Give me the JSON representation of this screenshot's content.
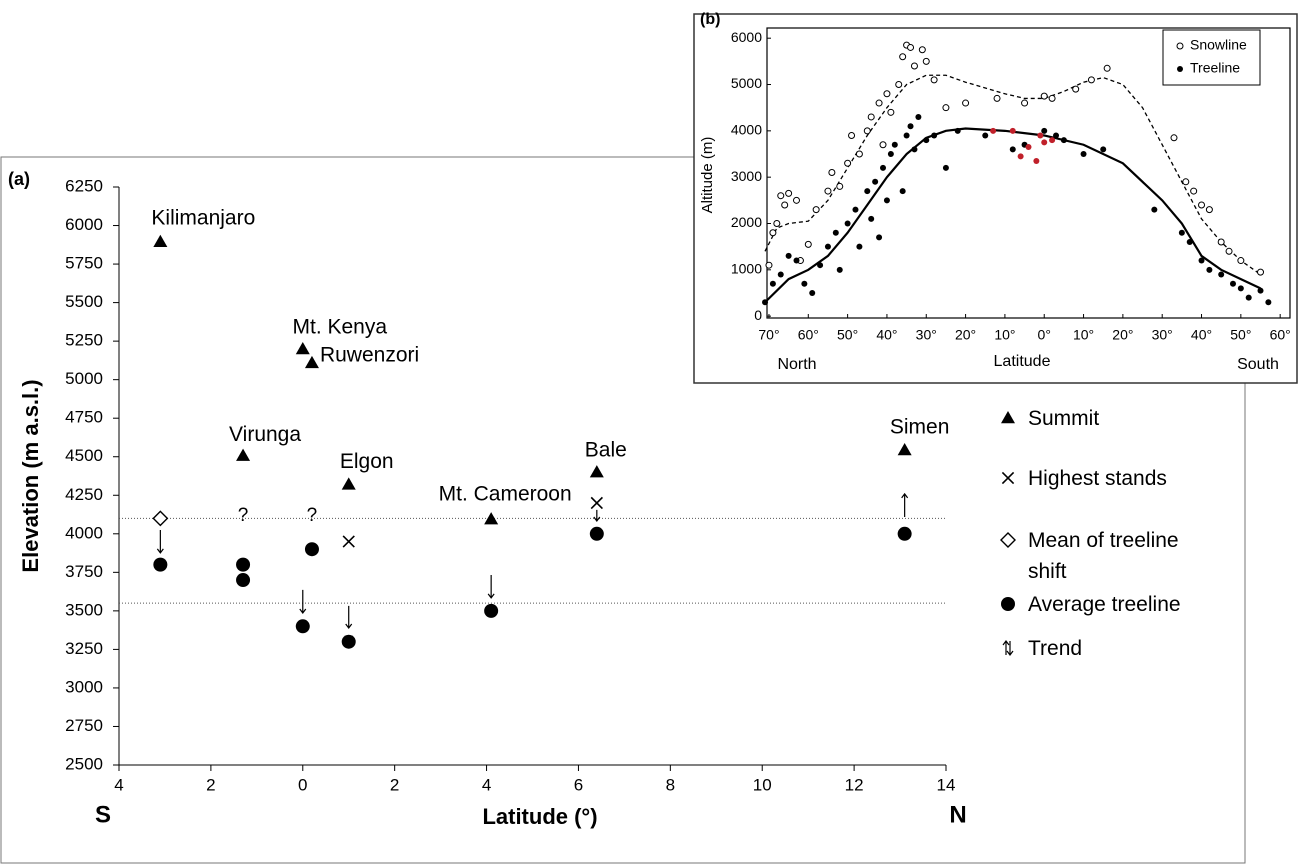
{
  "chart_data": [
    {
      "type": "scatter",
      "title": "(a)",
      "ylabel": "Elevation (m a.s.l.)",
      "xlabel": "Latitude (°)",
      "x_side_labels": [
        "S",
        "N"
      ],
      "xlim": [
        -4,
        14
      ],
      "ylim": [
        2500,
        6250
      ],
      "xticks": [
        {
          "value": -4,
          "label": "4"
        },
        {
          "value": -2,
          "label": "2"
        },
        0,
        2,
        4,
        6,
        8,
        10,
        12,
        14
      ],
      "yticks": [
        2500,
        2750,
        3000,
        3250,
        3500,
        3750,
        4000,
        4250,
        4500,
        4750,
        5000,
        5250,
        5500,
        5750,
        6000,
        6250
      ],
      "hlines": [
        4100,
        3550
      ],
      "legend": "right",
      "series": [
        {
          "name": "Summit",
          "marker": "triangle",
          "color": "#000000",
          "x": [
            -3.1,
            0,
            0.2,
            -1.3,
            1.0,
            4.1,
            6.4,
            13.1
          ],
          "values": [
            5895,
            5199,
            5109,
            4507,
            4321,
            4095,
            4400,
            4544
          ],
          "labels": [
            "Kilimanjaro",
            "Mt. Kenya",
            "Ruwenzori",
            "Virunga",
            "Elgon",
            "Mt. Cameroon",
            "Bale",
            "Simen"
          ]
        },
        {
          "name": "Highest stands",
          "marker": "cross",
          "color": "#000000",
          "x": [
            1.0,
            6.4
          ],
          "values": [
            3950,
            4200
          ]
        },
        {
          "name": "Mean of treeline shift",
          "marker": "diamond",
          "color": "#000000",
          "x": [
            -3.1
          ],
          "values": [
            4100
          ]
        },
        {
          "name": "Average treeline",
          "marker": "circle",
          "color": "#000000",
          "x": [
            -3.1,
            -1.3,
            -1.3,
            0,
            0.2,
            1.0,
            4.1,
            6.4,
            13.1
          ],
          "values": [
            3800,
            3800,
            3700,
            3400,
            3900,
            3300,
            3500,
            4000,
            4000
          ]
        },
        {
          "name": "Trend",
          "marker": "arrow",
          "color": "#000000",
          "x": [
            -3.1,
            0,
            1.0,
            4.1,
            6.4,
            13.1
          ],
          "values": [
            4025,
            3636,
            3532,
            3733,
            4155,
            4109
          ],
          "to": [
            3876,
            3486,
            3389,
            3584,
            4083,
            4259
          ]
        }
      ],
      "annotations": [
        {
          "text": "?",
          "x": -1.3,
          "y": 4115
        },
        {
          "text": "?",
          "x": 0.2,
          "y": 4115
        }
      ]
    },
    {
      "type": "scatter",
      "title": "(b)",
      "ylabel": "Altitude (m)",
      "xlabel": "Latitude",
      "x_side_labels": [
        "North",
        "South"
      ],
      "xlim": [
        -70.5,
        62.5
      ],
      "ylim": [
        -40,
        6220
      ],
      "xticks": [
        {
          "value": -70,
          "label": "70°"
        },
        {
          "value": -60,
          "label": "60°"
        },
        {
          "value": -50,
          "label": "50°"
        },
        {
          "value": -40,
          "label": "40°"
        },
        {
          "value": -30,
          "label": "30°"
        },
        {
          "value": -20,
          "label": "20°"
        },
        {
          "value": -10,
          "label": "10°"
        },
        {
          "value": 0,
          "label": "0°"
        },
        {
          "value": 10,
          "label": "10°"
        },
        {
          "value": 20,
          "label": "20°"
        },
        {
          "value": 30,
          "label": "30°"
        },
        {
          "value": 40,
          "label": "40°"
        },
        {
          "value": 50,
          "label": "50°"
        },
        {
          "value": 60,
          "label": "60°"
        }
      ],
      "yticks": [
        0,
        1000,
        2000,
        3000,
        4000,
        5000,
        6000
      ],
      "legend": "upper right",
      "series": [
        {
          "name": "Snowline",
          "marker": "open-circle",
          "color": "#000000",
          "x": [
            -70,
            -69,
            -68,
            -67,
            -66,
            -65,
            -63,
            -62,
            -60,
            -58,
            -55,
            -54,
            -52,
            -50,
            -49,
            -47,
            -45,
            -44,
            -42,
            -41,
            -40,
            -39,
            -37,
            -36,
            -35,
            -34,
            -33,
            -31,
            -30,
            -28,
            -25,
            -20,
            -12,
            -5,
            0,
            2,
            8,
            12,
            16,
            33,
            36,
            38,
            40,
            42,
            45,
            47,
            50,
            55
          ],
          "values": [
            1100,
            1800,
            2000,
            2600,
            2400,
            2650,
            2500,
            1200,
            1550,
            2300,
            2700,
            3100,
            2800,
            3300,
            3900,
            3500,
            4000,
            4300,
            4600,
            3700,
            4800,
            4400,
            5000,
            5600,
            5850,
            5800,
            5400,
            5750,
            5500,
            5100,
            4500,
            4600,
            4700,
            4600,
            4750,
            4700,
            4900,
            5100,
            5350,
            3850,
            2900,
            2700,
            2400,
            2300,
            1600,
            1400,
            1200,
            950
          ]
        },
        {
          "name": "Treeline",
          "marker": "circle",
          "color": "#000000",
          "x": [
            -71,
            -69,
            -67,
            -65,
            -63,
            -61,
            -59,
            -57,
            -55,
            -53,
            -52,
            -50,
            -48,
            -47,
            -45,
            -44,
            -43,
            -42,
            -41,
            -40,
            -39,
            -38,
            -36,
            -35,
            -34,
            -33,
            -32,
            -30,
            -28,
            -25,
            -22,
            -15,
            -8,
            -5,
            0,
            3,
            5,
            10,
            15,
            28,
            35,
            37,
            40,
            42,
            45,
            48,
            50,
            52,
            55,
            57
          ],
          "values": [
            300,
            700,
            900,
            1300,
            1200,
            700,
            500,
            1100,
            1500,
            1800,
            1000,
            2000,
            2300,
            1500,
            2700,
            2100,
            2900,
            1700,
            3200,
            2500,
            3500,
            3700,
            2700,
            3900,
            4100,
            3600,
            4300,
            3800,
            3900,
            3200,
            4000,
            3900,
            3600,
            3700,
            4000,
            3900,
            3800,
            3500,
            3600,
            2300,
            1800,
            1600,
            1200,
            1000,
            900,
            700,
            600,
            400,
            550,
            300
          ]
        },
        {
          "marker": "circle",
          "color": "#c0202a",
          "x": [
            -13,
            -8,
            -6,
            -4,
            -2,
            -1,
            0,
            2
          ],
          "values": [
            4000,
            4000,
            3450,
            3650,
            3350,
            3900,
            3750,
            3800
          ]
        }
      ],
      "fits": [
        {
          "dash": true,
          "x": [
            -71,
            -68,
            -65,
            -60,
            -55,
            -50,
            -45,
            -40,
            -35,
            -30,
            -25,
            -20,
            -10,
            -5,
            0,
            5,
            10,
            15,
            20,
            25,
            30,
            35,
            40,
            45,
            50,
            55
          ],
          "values": [
            1400,
            1900,
            2000,
            2050,
            2500,
            3200,
            3900,
            4500,
            5000,
            5200,
            5200,
            5050,
            4800,
            4700,
            4700,
            4850,
            5050,
            5150,
            5000,
            4500,
            3700,
            2900,
            2100,
            1600,
            1200,
            900
          ]
        },
        {
          "dash": false,
          "x": [
            -71,
            -65,
            -60,
            -55,
            -50,
            -45,
            -40,
            -35,
            -30,
            -25,
            -20,
            -10,
            0,
            10,
            20,
            30,
            35,
            40,
            45,
            50,
            55
          ],
          "values": [
            300,
            800,
            1000,
            1300,
            1800,
            2400,
            3000,
            3500,
            3850,
            4000,
            4050,
            4000,
            3900,
            3700,
            3300,
            2500,
            2000,
            1300,
            1000,
            800,
            600
          ]
        }
      ]
    }
  ]
}
